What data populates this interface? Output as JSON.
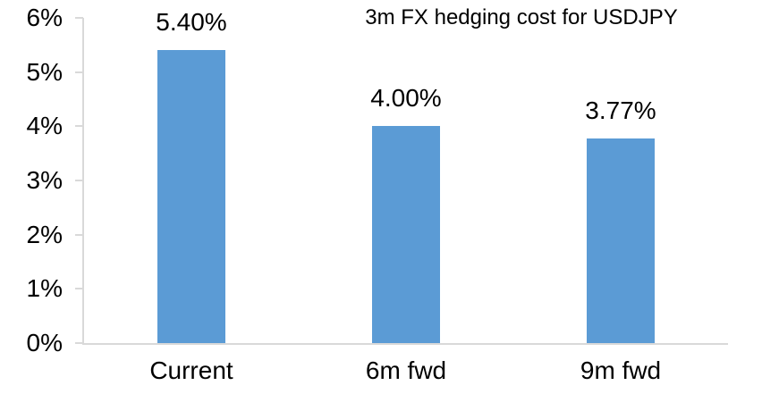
{
  "chart_data": {
    "type": "bar",
    "title": "3m FX hedging cost for USDJPY",
    "categories": [
      "Current",
      "6m fwd",
      "9m fwd"
    ],
    "values": [
      5.4,
      4.0,
      3.77
    ],
    "data_labels": [
      "5.40%",
      "4.00%",
      "3.77%"
    ],
    "xlabel": "",
    "ylabel": "",
    "ylim": [
      0,
      6
    ],
    "yticks": [
      0,
      1,
      2,
      3,
      4,
      5,
      6
    ],
    "ytick_labels": [
      "0%",
      "1%",
      "2%",
      "3%",
      "4%",
      "5%",
      "6%"
    ],
    "grid": false,
    "legend": false,
    "colors": {
      "bar_fill": "#5B9BD5",
      "axis_line": "#D9D9D9",
      "text": "#000000",
      "background": "#FFFFFF"
    }
  }
}
